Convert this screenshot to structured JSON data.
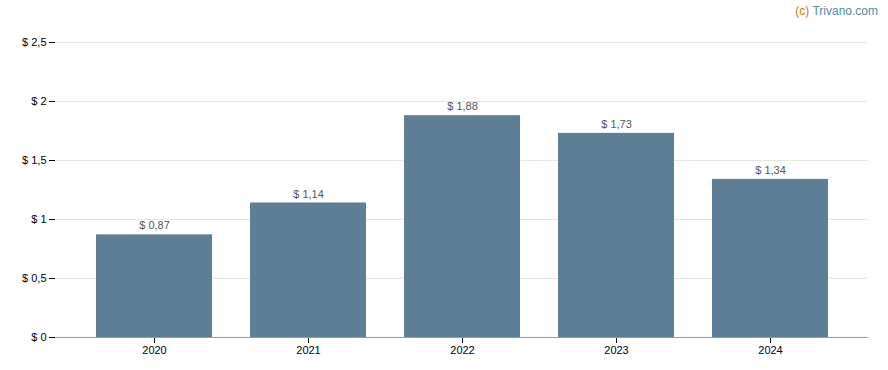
{
  "chart_data": {
    "type": "bar",
    "categories": [
      "2020",
      "2021",
      "2022",
      "2023",
      "2024"
    ],
    "values": [
      0.87,
      1.14,
      1.88,
      1.73,
      1.34
    ],
    "value_labels": [
      "$ 0,87",
      "$ 1,14",
      "$ 1,88",
      "$ 1,73",
      "$ 1,34"
    ],
    "data_labels": true,
    "color": "#5f7f96",
    "ylim": [
      0,
      2.5
    ],
    "yticks": [
      {
        "value": 0,
        "label": "$ 0"
      },
      {
        "value": 0.5,
        "label": "$ 0,5"
      },
      {
        "value": 1.0,
        "label": "$ 1"
      },
      {
        "value": 1.5,
        "label": "$ 1,5"
      },
      {
        "value": 2.0,
        "label": "$ 2"
      },
      {
        "value": 2.5,
        "label": "$ 2,5"
      }
    ],
    "grid": true,
    "annotations": [
      {
        "text": "(c)",
        "color": "#e07020"
      },
      {
        "text": " Trivano.com",
        "color": "#5588aa"
      }
    ]
  }
}
